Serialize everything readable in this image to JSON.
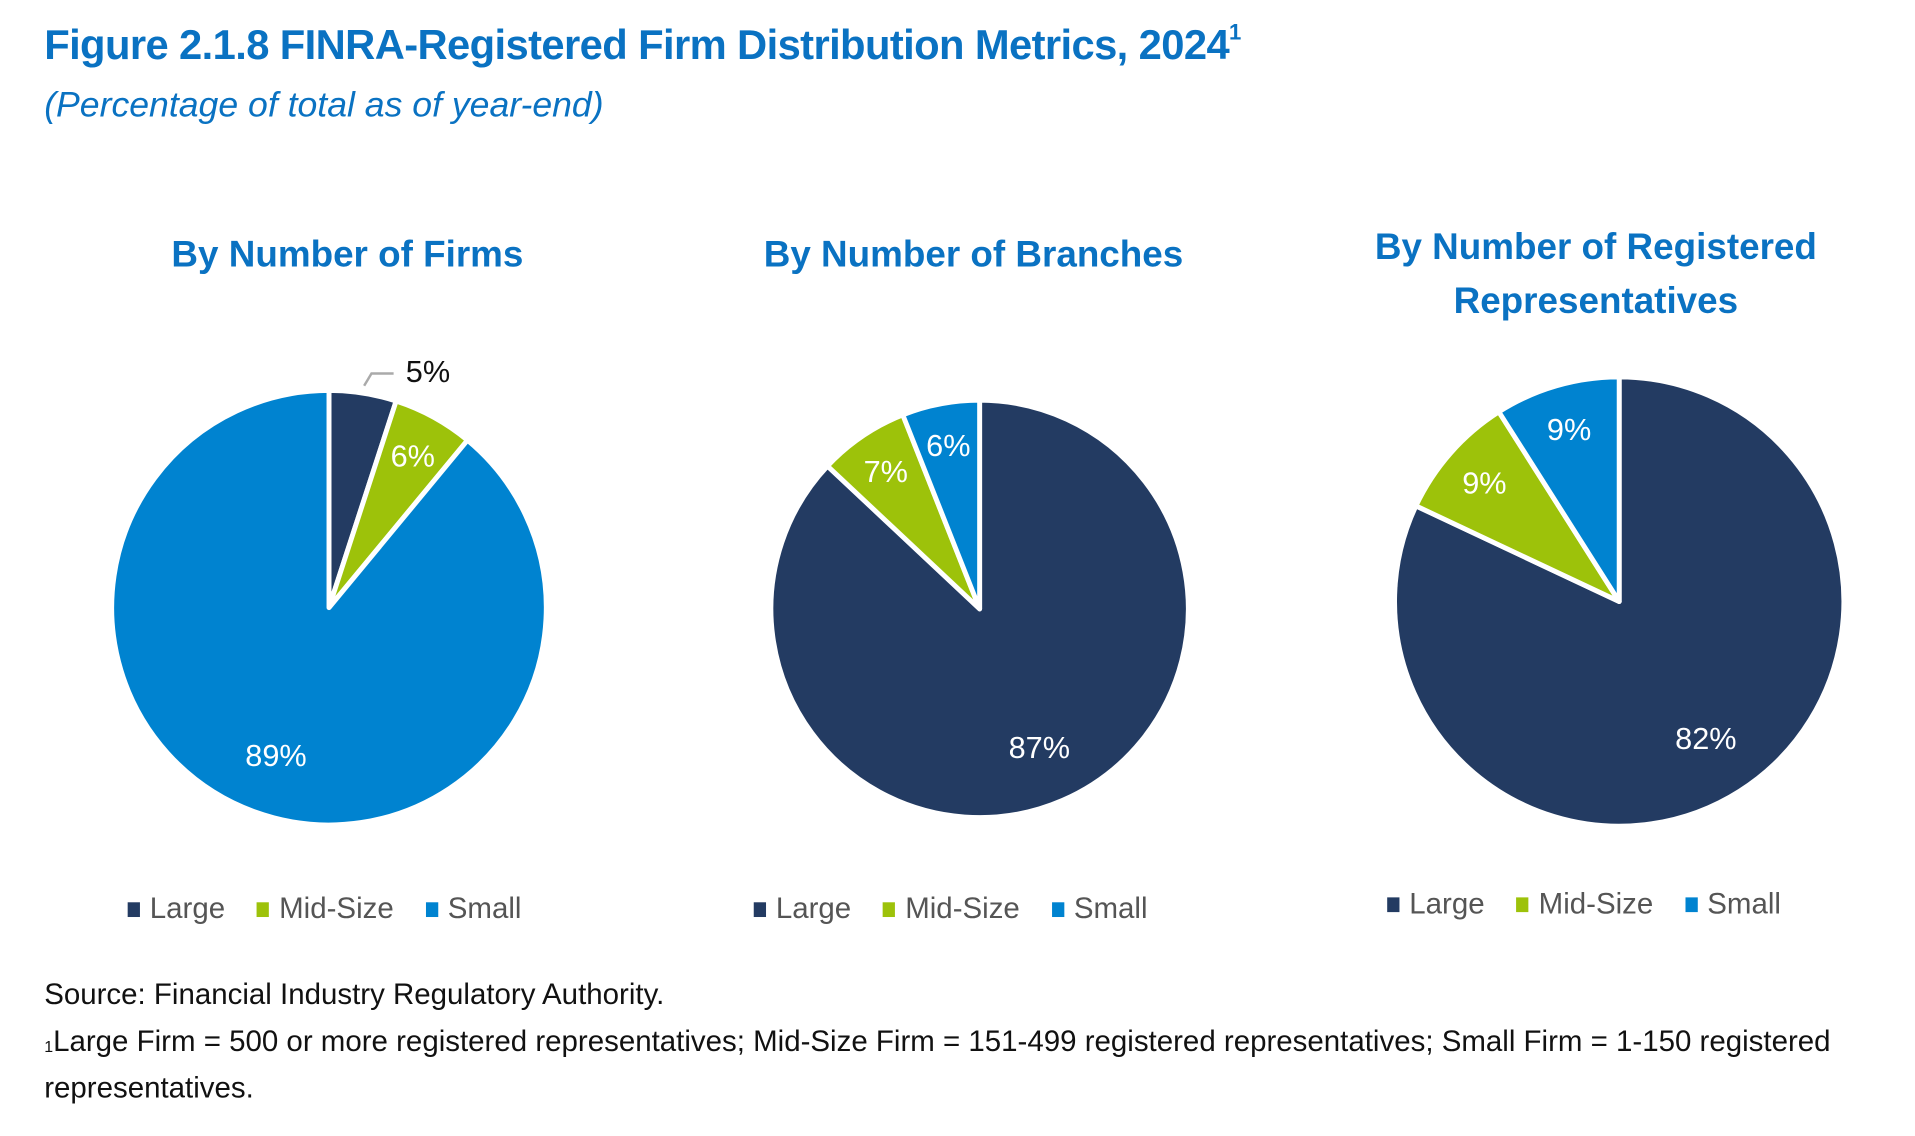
{
  "title": "Figure 2.1.8 FINRA-Registered Firm Distribution Metrics, 2024",
  "title_footnote_marker": "1",
  "subtitle": "(Percentage of total as of year-end)",
  "colors": {
    "Large": "#233b62",
    "Mid-Size": "#9dc20a",
    "Small": "#0083d0",
    "title": "#0a72c2"
  },
  "chart_data": [
    {
      "type": "pie",
      "title": "By Number of Firms",
      "categories": [
        "Large",
        "Mid-Size",
        "Small"
      ],
      "values": [
        5,
        6,
        89
      ],
      "labels": [
        "5%",
        "6%",
        "89%"
      ],
      "legend": "bottom"
    },
    {
      "type": "pie",
      "title": "By Number of Branches",
      "categories": [
        "Large",
        "Mid-Size",
        "Small"
      ],
      "values": [
        87,
        7,
        6
      ],
      "labels": [
        "87%",
        "7%",
        "6%"
      ],
      "legend": "bottom"
    },
    {
      "type": "pie",
      "title": "By Number of Registered Representatives",
      "categories": [
        "Large",
        "Mid-Size",
        "Small"
      ],
      "values": [
        82,
        9,
        9
      ],
      "labels": [
        "82%",
        "9%",
        "9%"
      ],
      "legend": "bottom"
    }
  ],
  "footer": {
    "source": "Source: Financial Industry Regulatory Authority.",
    "note_marker": "1",
    "note": "Large Firm = 500 or more registered representatives; Mid-Size Firm = 151-499 registered representatives; Small Firm = 1-150 registered representatives."
  }
}
